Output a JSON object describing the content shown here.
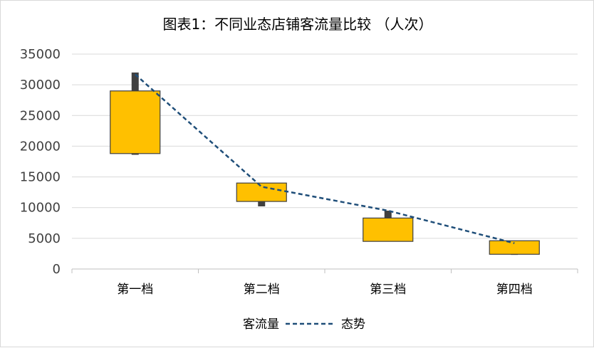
{
  "chart_data": {
    "type": "box",
    "title": "图表1：不同业态店铺客流量比较 （人次）",
    "categories": [
      "第一档",
      "第二档",
      "第三档",
      "第四档"
    ],
    "y_ticks": [
      "0",
      "5000",
      "10000",
      "15000",
      "20000",
      "25000",
      "30000",
      "35000"
    ],
    "ylim": [
      0,
      35000
    ],
    "grid": true,
    "legend_position": "bottom",
    "series": [
      {
        "name": "客流量",
        "boxes": [
          {
            "min": 18600,
            "q1": 18800,
            "q3": 29000,
            "max": 32000
          },
          {
            "min": 10200,
            "q1": 11000,
            "q3": 14000,
            "max": 14000
          },
          {
            "min": 4500,
            "q1": 4500,
            "q3": 8300,
            "max": 9500
          },
          {
            "min": 2300,
            "q1": 2400,
            "q3": 4600,
            "max": 4600
          }
        ],
        "color": "#FFC000"
      },
      {
        "name": "态势",
        "values": [
          31700,
          13400,
          9500,
          4200
        ],
        "color": "#1F4E79"
      }
    ]
  }
}
